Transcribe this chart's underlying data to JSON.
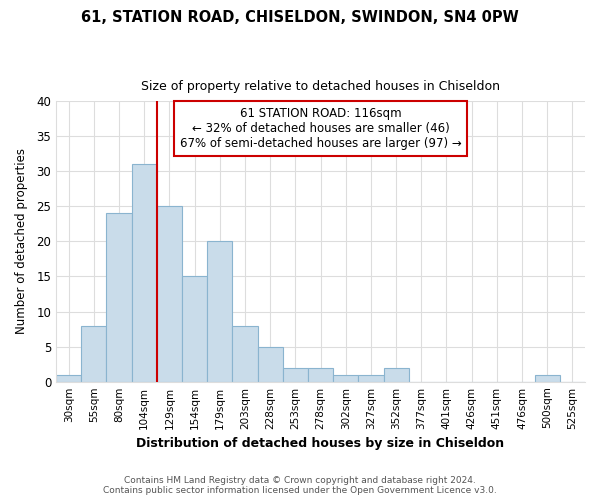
{
  "title1": "61, STATION ROAD, CHISELDON, SWINDON, SN4 0PW",
  "title2": "Size of property relative to detached houses in Chiseldon",
  "xlabel": "Distribution of detached houses by size in Chiseldon",
  "ylabel": "Number of detached properties",
  "categories": [
    "30sqm",
    "55sqm",
    "80sqm",
    "104sqm",
    "129sqm",
    "154sqm",
    "179sqm",
    "203sqm",
    "228sqm",
    "253sqm",
    "278sqm",
    "302sqm",
    "327sqm",
    "352sqm",
    "377sqm",
    "401sqm",
    "426sqm",
    "451sqm",
    "476sqm",
    "500sqm",
    "525sqm"
  ],
  "bar_values": [
    1,
    8,
    24,
    31,
    25,
    15,
    20,
    8,
    5,
    2,
    2,
    1,
    1,
    2,
    0,
    0,
    0,
    0,
    0,
    1,
    0
  ],
  "bar_color": "#c9dcea",
  "bar_edge_color": "#8ab4cf",
  "vline_x": 3.5,
  "vline_color": "#cc0000",
  "annotation_title": "61 STATION ROAD: 116sqm",
  "annotation_line1": "← 32% of detached houses are smaller (46)",
  "annotation_line2": "67% of semi-detached houses are larger (97) →",
  "annotation_box_color": "#cc0000",
  "ylim": [
    0,
    40
  ],
  "yticks": [
    0,
    5,
    10,
    15,
    20,
    25,
    30,
    35,
    40
  ],
  "footer1": "Contains HM Land Registry data © Crown copyright and database right 2024.",
  "footer2": "Contains public sector information licensed under the Open Government Licence v3.0.",
  "bg_color": "#ffffff",
  "plot_bg_color": "#ffffff",
  "grid_color": "#dddddd"
}
